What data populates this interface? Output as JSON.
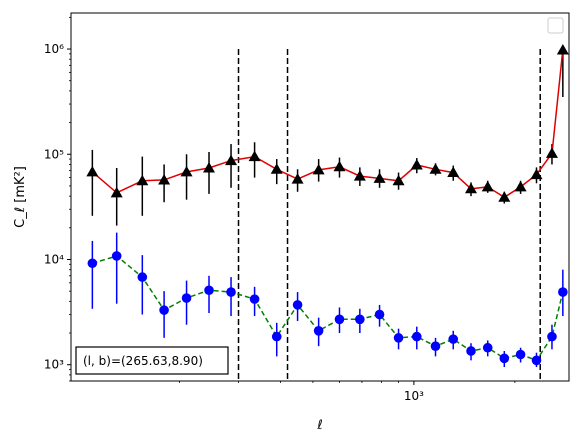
{
  "chart_data": {
    "type": "line",
    "title": "",
    "xlabel": "ℓ",
    "ylabel": "C_ℓ  [mK²]",
    "xscale": "log",
    "yscale": "log",
    "xlim": [
      95,
      2900
    ],
    "ylim": [
      700,
      2200000
    ],
    "xtick_labels": [
      {
        "value": 1000,
        "label": "10³"
      }
    ],
    "ytick_labels": [
      {
        "value": 1000,
        "label": "10³"
      },
      {
        "value": 10000,
        "label": "10⁴"
      },
      {
        "value": 100000,
        "label": "10⁵"
      },
      {
        "value": 1000000,
        "label": "10⁶"
      }
    ],
    "grid": false,
    "legend": {
      "placement": "top-right",
      "entries": []
    },
    "annotation": "(l, b)=(265.63,8.90)",
    "vlines": {
      "x": [
        300,
        420,
        2380
      ],
      "ymin": 700,
      "ymax": 1000000,
      "color": "#000000",
      "style": "dashed"
    },
    "x": [
      110,
      130,
      155,
      180,
      210,
      245,
      285,
      335,
      390,
      450,
      520,
      600,
      690,
      790,
      900,
      1020,
      1160,
      1310,
      1480,
      1660,
      1860,
      2080,
      2320,
      2580,
      2780
    ],
    "series": [
      {
        "color": "#e00000",
        "marker": "triangle",
        "marker_color": "#000000",
        "line": "solid",
        "y": [
          68000,
          43000,
          56000,
          57000,
          68000,
          74000,
          87000,
          95000,
          72000,
          58000,
          71000,
          76000,
          62000,
          59000,
          56000,
          79000,
          72000,
          67000,
          47000,
          49000,
          39000,
          49000,
          64000,
          102000,
          980000
        ],
        "y_low": [
          26000,
          21000,
          26000,
          35000,
          37000,
          42000,
          48000,
          60000,
          52000,
          44000,
          55000,
          60000,
          50000,
          48000,
          46000,
          66000,
          63000,
          56000,
          40000,
          43000,
          34000,
          42000,
          53000,
          80000,
          350000
        ],
        "y_high": [
          110000,
          74000,
          95000,
          80000,
          100000,
          105000,
          125000,
          130000,
          90000,
          72000,
          90000,
          93000,
          75000,
          72000,
          67000,
          92000,
          82000,
          78000,
          54000,
          56000,
          44000,
          56000,
          75000,
          125000,
          1000000
        ]
      },
      {
        "color": "#008000",
        "marker": "circle",
        "marker_color": "#0000ff",
        "line": "dashed",
        "y": [
          9200,
          10800,
          6800,
          3300,
          4300,
          5100,
          4900,
          4200,
          1850,
          3700,
          2100,
          2700,
          2700,
          3000,
          1800,
          1850,
          1500,
          1750,
          1350,
          1450,
          1150,
          1250,
          1100,
          1850,
          4900
        ],
        "y_low": [
          3400,
          3800,
          3000,
          1800,
          2400,
          3100,
          2900,
          2900,
          1200,
          2600,
          1500,
          2000,
          2000,
          2300,
          1400,
          1400,
          1200,
          1400,
          1100,
          1200,
          950,
          1050,
          950,
          1400,
          2900
        ],
        "y_high": [
          15000,
          18000,
          11000,
          5000,
          6300,
          7000,
          6800,
          5500,
          2500,
          4900,
          2800,
          3500,
          3400,
          3700,
          2200,
          2300,
          1800,
          2100,
          1600,
          1700,
          1350,
          1450,
          1300,
          2400,
          8000
        ]
      }
    ]
  }
}
